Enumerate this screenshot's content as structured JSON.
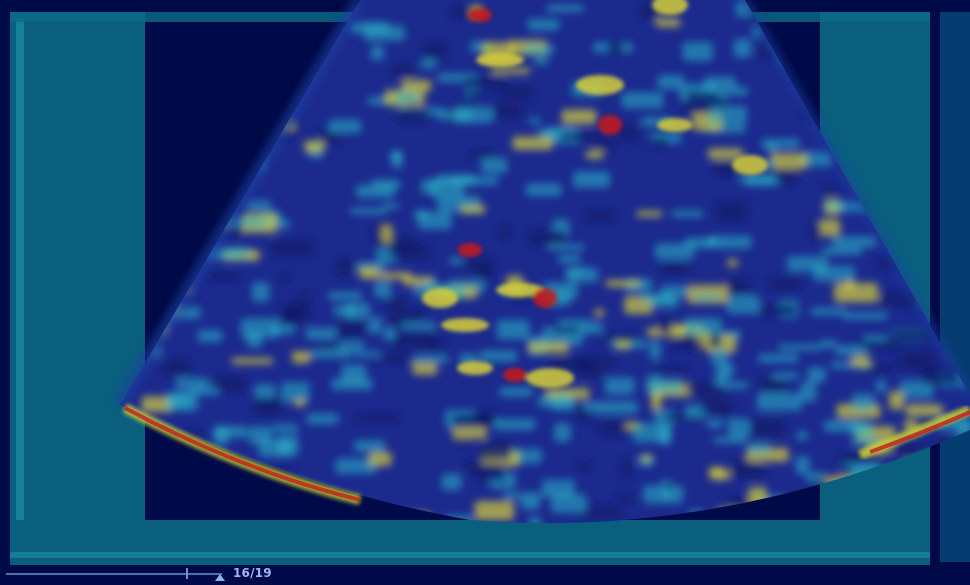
{
  "viewer": {
    "frame_counter": "16/19",
    "current_frame": 16,
    "total_frames": 19
  },
  "colors": {
    "background": "#001052",
    "heat_low": "#1a2a9a",
    "heat_mid": "#2bb7c9",
    "heat_high": "#d6cf3b",
    "heat_peak": "#c81a1a"
  }
}
